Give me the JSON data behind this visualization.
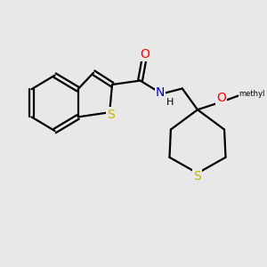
{
  "bg_color": "#e8e8e8",
  "bond_color": "#000000",
  "bond_width": 1.6,
  "atom_colors": {
    "S": "#c8b400",
    "N": "#0000cc",
    "O": "#ff0000",
    "H": "#000000",
    "C": "#000000"
  },
  "font_size_atom": 10,
  "font_size_small": 8,
  "font_size_methyl": 9
}
